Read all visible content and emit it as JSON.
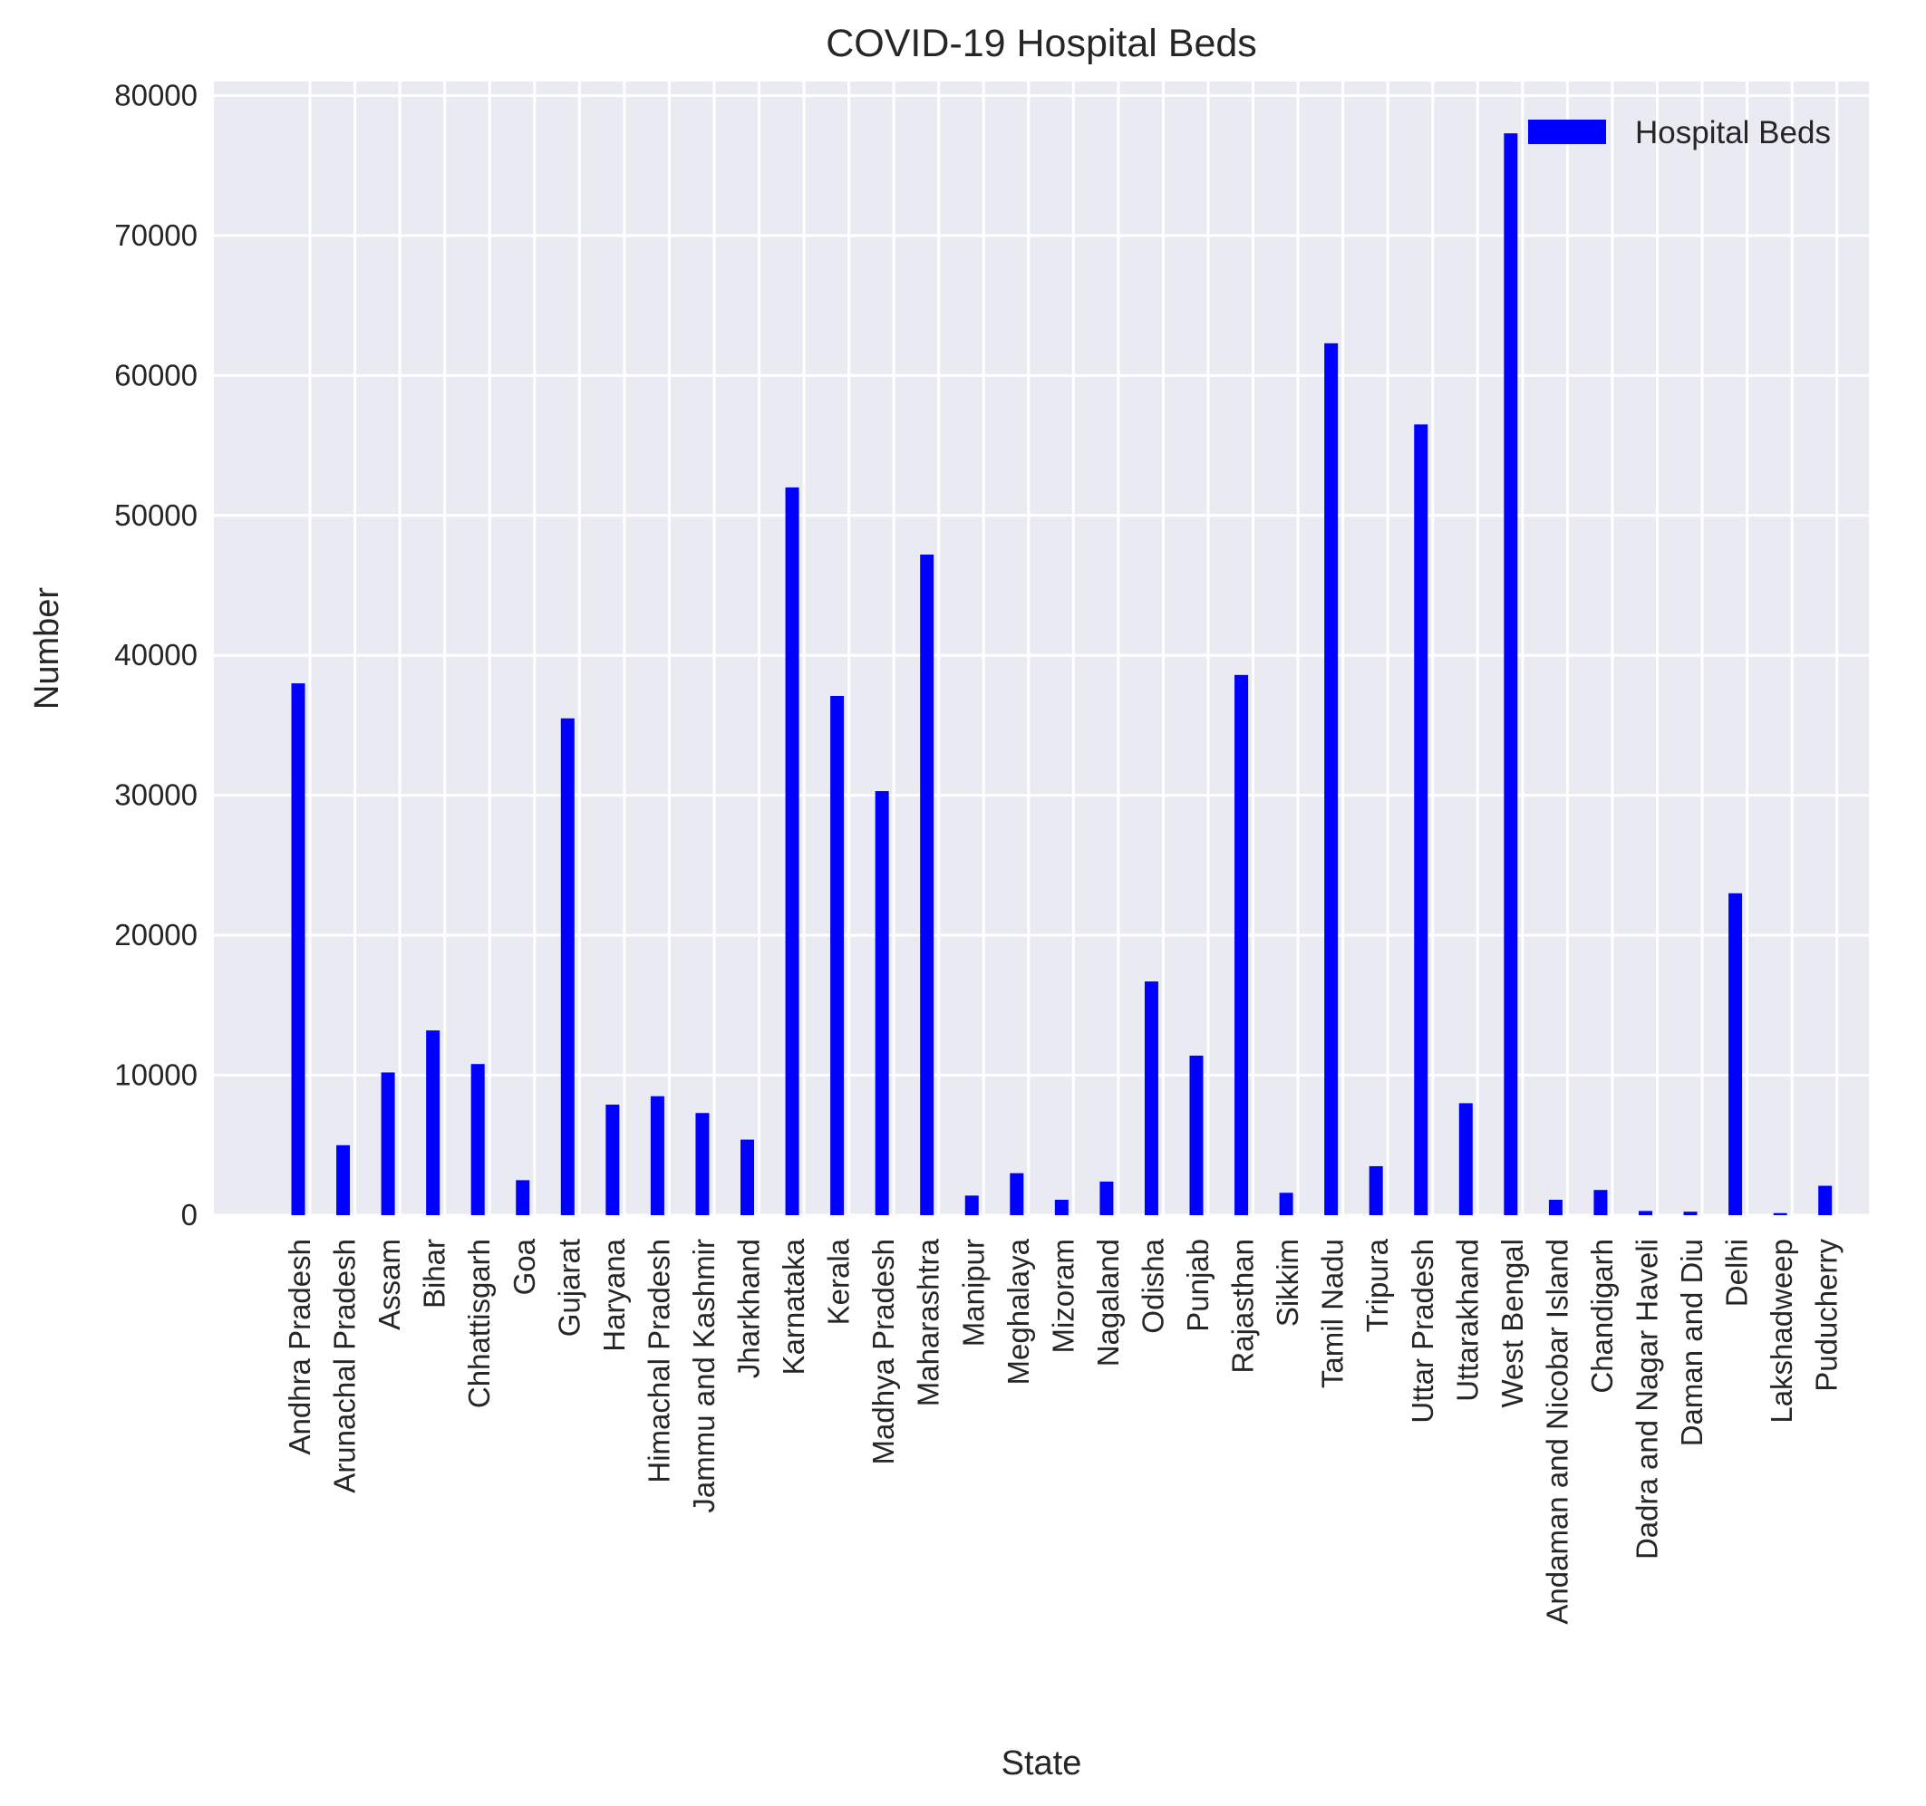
{
  "chart_data": {
    "type": "bar",
    "title": "COVID-19 Hospital Beds",
    "xlabel": "State",
    "ylabel": "Number",
    "ylim": [
      0,
      81000
    ],
    "yticks": [
      0,
      10000,
      20000,
      30000,
      40000,
      50000,
      60000,
      70000,
      80000
    ],
    "grid": true,
    "legend_position": "top-right",
    "categories": [
      "Andhra Pradesh",
      "Arunachal Pradesh",
      "Assam",
      "Bihar",
      "Chhattisgarh",
      "Goa",
      "Gujarat",
      "Haryana",
      "Himachal Pradesh",
      "Jammu and Kashmir",
      "Jharkhand",
      "Karnataka",
      "Kerala",
      "Madhya Pradesh",
      "Maharashtra",
      "Manipur",
      "Meghalaya",
      "Mizoram",
      "Nagaland",
      "Odisha",
      "Punjab",
      "Rajasthan",
      "Sikkim",
      "Tamil Nadu",
      "Tripura",
      "Uttar Pradesh",
      "Uttarakhand",
      "West Bengal",
      "Andaman and Nicobar Island",
      "Chandigarh",
      "Dadra and Nagar Haveli",
      "Daman and Diu",
      "Delhi",
      "Lakshadweep",
      "Puducherry"
    ],
    "series": [
      {
        "name": "Hospital Beds",
        "color": "#0000ff",
        "values": [
          38000,
          5000,
          10200,
          13200,
          10800,
          2500,
          35500,
          7900,
          8500,
          7300,
          5400,
          52000,
          37100,
          30300,
          47200,
          1400,
          3000,
          1100,
          2400,
          16700,
          11400,
          38600,
          1600,
          62300,
          3500,
          56500,
          8000,
          77300,
          1100,
          1800,
          300,
          250,
          23000,
          150,
          2100
        ]
      }
    ]
  }
}
